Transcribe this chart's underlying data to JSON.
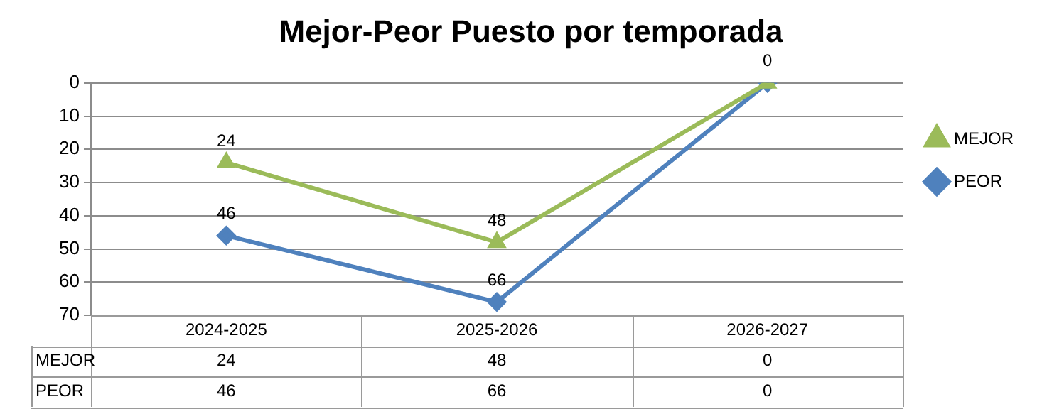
{
  "chart_data": {
    "type": "line",
    "title": "Mejor-Peor Puesto por temporada",
    "categories": [
      "2024-2025",
      "2025-2026",
      "2026-2027"
    ],
    "series": [
      {
        "name": "MEJOR",
        "color": "#9bbb59",
        "marker": "triangle",
        "values": [
          24,
          48,
          0
        ]
      },
      {
        "name": "PEOR",
        "color": "#4f81bd",
        "marker": "diamond",
        "values": [
          46,
          66,
          0
        ]
      }
    ],
    "annotations": [
      {
        "text": "24",
        "x": "2024-2025",
        "y": 24
      },
      {
        "text": "48",
        "x": "2025-2026",
        "y": 48
      },
      {
        "text": "0",
        "x": "2026-2027",
        "y": 0
      },
      {
        "text": "46",
        "x": "2024-2025",
        "y": 46
      },
      {
        "text": "66",
        "x": "2025-2026",
        "y": 66
      }
    ],
    "ylim": [
      70,
      0
    ],
    "yticks": [
      0,
      10,
      20,
      30,
      40,
      50,
      60,
      70
    ],
    "grid": "y",
    "legend": "right",
    "data_labels": true
  }
}
